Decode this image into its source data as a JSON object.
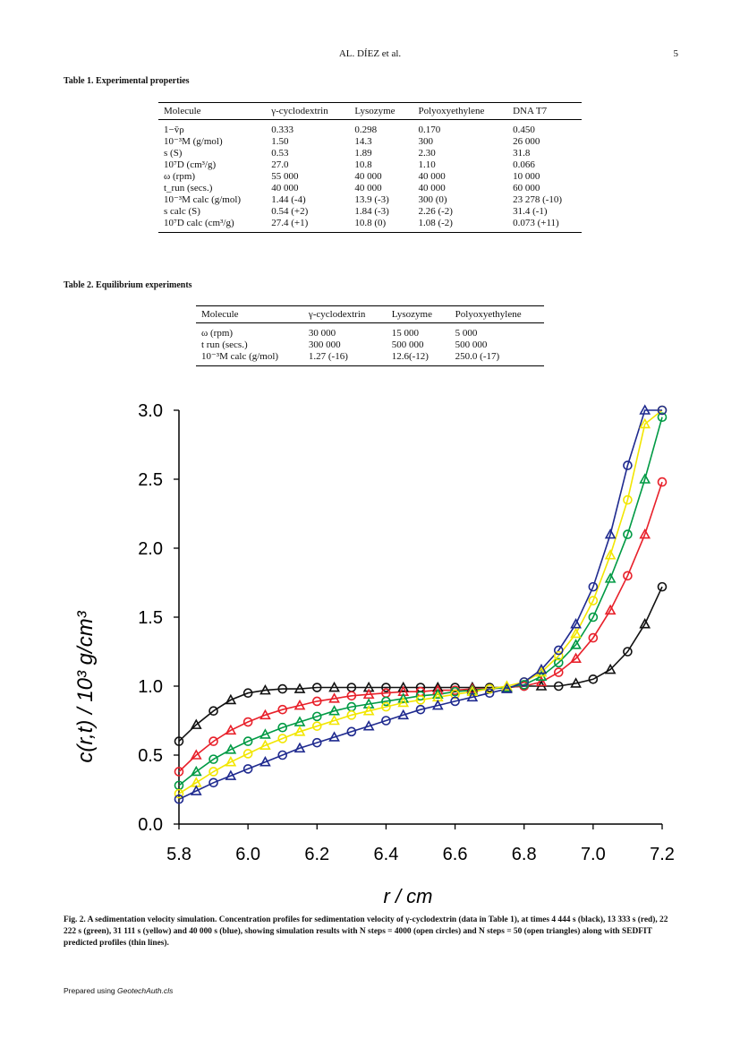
{
  "header": {
    "title": "AL. DÍEZ et al.",
    "page_number": "5"
  },
  "table1": {
    "caption": "Table 1.  Experimental properties",
    "columns": [
      "Molecule",
      "γ-cyclodextrin",
      "Lysozyme",
      "Polyoxyethylene",
      "DNA T7"
    ],
    "rows": [
      [
        "1−v̄ρ",
        "0.333",
        "0.298",
        "0.170",
        "0.450"
      ],
      [
        "10⁻³M (g/mol)",
        "1.50",
        "14.3",
        "300",
        "26 000"
      ],
      [
        "s (S)",
        "0.53",
        "1.89",
        "2.30",
        "31.8"
      ],
      [
        "10⁷D (cm³/g)",
        "27.0",
        "10.8",
        "1.10",
        "0.066"
      ],
      [
        "ω (rpm)",
        "55 000",
        "40 000",
        "40 000",
        "10 000"
      ],
      [
        "t_run (secs.)",
        "40 000",
        "40 000",
        "40 000",
        "60 000"
      ],
      [
        "10⁻³M calc (g/mol)",
        "1.44 (-4)",
        "13.9 (-3)",
        "300 (0)",
        "23 278 (-10)"
      ],
      [
        "s calc (S)",
        "0.54 (+2)",
        "1.84 (-3)",
        "2.26 (-2)",
        "31.4 (-1)"
      ],
      [
        "10⁷D calc (cm³/g)",
        "27.4 (+1)",
        "10.8 (0)",
        "1.08 (-2)",
        "0.073 (+11)"
      ]
    ]
  },
  "table2": {
    "caption": "Table 2.  Equilibrium experiments",
    "columns": [
      "Molecule",
      "γ-cyclodextrin",
      "Lysozyme",
      "Polyoxyethylene"
    ],
    "rows": [
      [
        "ω (rpm)",
        "30 000",
        "15 000",
        "5 000"
      ],
      [
        "t run (secs.)",
        "300 000",
        "500 000",
        "500 000"
      ],
      [
        "10⁻³M calc (g/mol)",
        "1.27 (-16)",
        "12.6(-12)",
        "250.0 (-17)"
      ]
    ]
  },
  "figure": {
    "caption": "Fig. 2.  A sedimentation velocity simulation. Concentration profiles for sedimentation velocity of γ-cyclodextrin (data in Table 1), at times 4 444 s (black), 13 333 s (red), 22 222 s (green), 31 111 s (yellow) and 40 000 s (blue), showing simulation results with N steps = 4000 (open circles) and N steps = 50 (open triangles) along with SEDFIT predicted profiles (thin lines)."
  },
  "chart_data": {
    "type": "line",
    "title": "",
    "xlabel": "r / cm",
    "ylabel": "c(r,t)  / 10³ g/cm³",
    "xlim": [
      5.8,
      7.2
    ],
    "ylim": [
      0.0,
      3.0
    ],
    "x_ticks": [
      "5.8",
      "6.0",
      "6.2",
      "6.4",
      "6.6",
      "6.8",
      "7.0",
      "7.2"
    ],
    "y_ticks": [
      "0.0",
      "0.5",
      "1.0",
      "1.5",
      "2.0",
      "2.5",
      "3.0"
    ],
    "x": [
      5.8,
      5.85,
      5.9,
      5.95,
      6.0,
      6.05,
      6.1,
      6.15,
      6.2,
      6.25,
      6.3,
      6.35,
      6.4,
      6.45,
      6.5,
      6.55,
      6.6,
      6.65,
      6.7,
      6.75,
      6.8,
      6.85,
      6.9,
      6.95,
      7.0,
      7.05,
      7.1,
      7.15,
      7.2
    ],
    "series": [
      {
        "name": "4 444 s",
        "color": "#111111",
        "values": [
          0.6,
          0.72,
          0.82,
          0.9,
          0.95,
          0.97,
          0.98,
          0.98,
          0.99,
          0.99,
          0.99,
          0.99,
          0.99,
          0.99,
          0.99,
          0.99,
          0.99,
          0.99,
          0.99,
          0.99,
          1.0,
          1.0,
          1.0,
          1.02,
          1.05,
          1.12,
          1.25,
          1.45,
          1.72
        ]
      },
      {
        "name": "13 333 s",
        "color": "#e8202a",
        "values": [
          0.38,
          0.5,
          0.6,
          0.68,
          0.74,
          0.79,
          0.83,
          0.86,
          0.89,
          0.91,
          0.93,
          0.94,
          0.95,
          0.96,
          0.96,
          0.97,
          0.97,
          0.98,
          0.98,
          0.99,
          1.0,
          1.03,
          1.1,
          1.2,
          1.35,
          1.55,
          1.8,
          2.1,
          2.48
        ]
      },
      {
        "name": "22 222 s",
        "color": "#009a44",
        "values": [
          0.28,
          0.38,
          0.47,
          0.54,
          0.6,
          0.65,
          0.7,
          0.74,
          0.78,
          0.82,
          0.85,
          0.87,
          0.89,
          0.91,
          0.93,
          0.94,
          0.96,
          0.97,
          0.98,
          0.99,
          1.01,
          1.07,
          1.17,
          1.3,
          1.5,
          1.78,
          2.1,
          2.5,
          2.95
        ]
      },
      {
        "name": "31 111 s",
        "color": "#f2e600",
        "values": [
          0.22,
          0.3,
          0.38,
          0.45,
          0.51,
          0.57,
          0.62,
          0.67,
          0.71,
          0.75,
          0.79,
          0.82,
          0.85,
          0.88,
          0.9,
          0.92,
          0.94,
          0.96,
          0.98,
          1.0,
          1.03,
          1.1,
          1.22,
          1.38,
          1.62,
          1.95,
          2.35,
          2.9,
          3.0
        ]
      },
      {
        "name": "40 000 s",
        "color": "#1f2a8f",
        "values": [
          0.18,
          0.24,
          0.3,
          0.35,
          0.4,
          0.45,
          0.5,
          0.55,
          0.59,
          0.63,
          0.67,
          0.71,
          0.75,
          0.79,
          0.83,
          0.86,
          0.89,
          0.92,
          0.95,
          0.98,
          1.03,
          1.12,
          1.26,
          1.45,
          1.72,
          2.1,
          2.6,
          3.0,
          3.0
        ]
      }
    ]
  }
}
